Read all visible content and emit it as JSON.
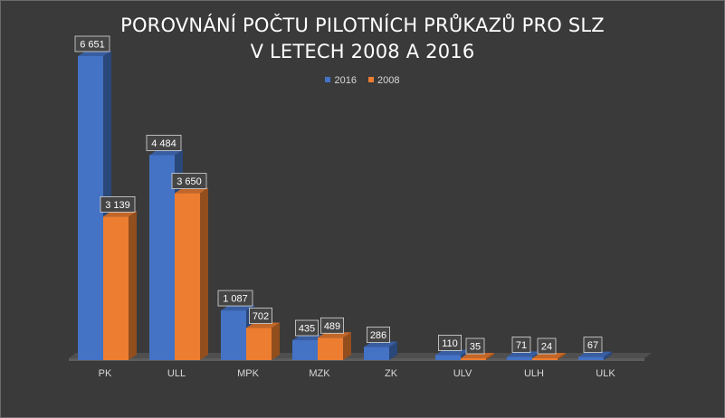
{
  "chart_data": {
    "type": "bar",
    "title_line1": "POROVNÁNÍ POČTU PILOTNÍCH PRŮKAZŮ PRO SLZ",
    "title_line2": "V LETECH 2008 A 2016",
    "categories": [
      "PK",
      "ULL",
      "MPK",
      "MZK",
      "ZK",
      "ULV",
      "ULH",
      "ULK"
    ],
    "series": [
      {
        "name": "2016",
        "color": "#4472c4",
        "values": [
          6651,
          4484,
          1087,
          435,
          286,
          110,
          71,
          67
        ],
        "labels": [
          "6 651",
          "4 484",
          "1 087",
          "435",
          "286",
          "110",
          "71",
          "67"
        ]
      },
      {
        "name": "2008",
        "color": "#ed7d31",
        "values": [
          3139,
          3650,
          702,
          489,
          null,
          35,
          24,
          null
        ],
        "labels": [
          "3 139",
          "3 650",
          "702",
          "489",
          "",
          "35",
          "24",
          ""
        ]
      }
    ],
    "ylim": [
      0,
      6651
    ],
    "style": "3d-clustered-column",
    "legend_position": "top",
    "grid": false,
    "colors": {
      "background": "#3a3a3a",
      "floor": "#555555",
      "label_box": "#4a4a4a"
    }
  }
}
